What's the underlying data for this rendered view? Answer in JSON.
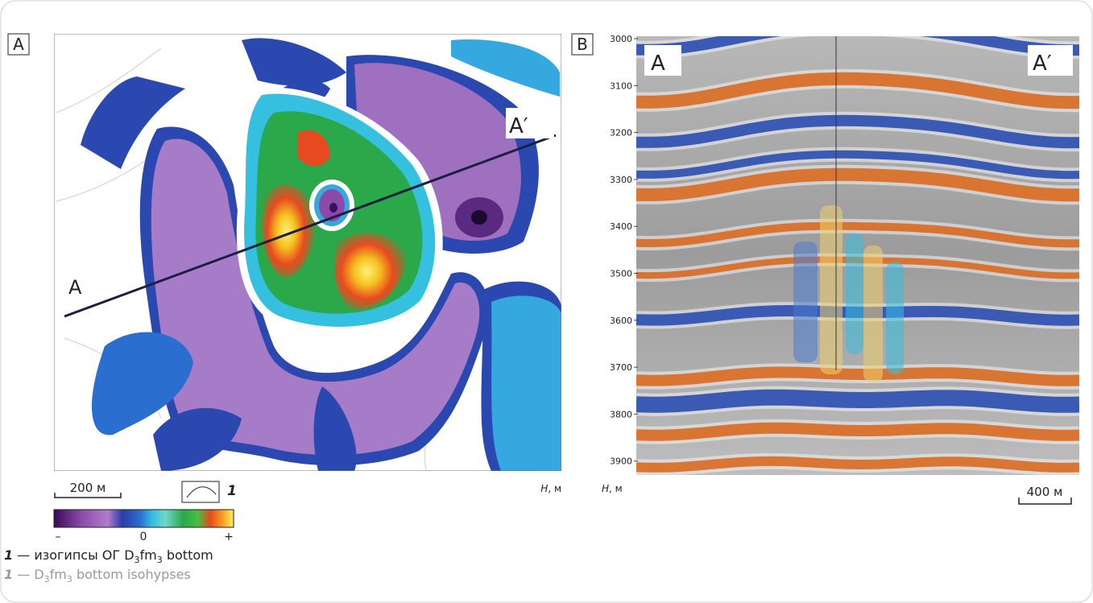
{
  "panel_a": {
    "label": "A",
    "section_start": "A",
    "section_end": "A′",
    "scale_bar": "200 м",
    "legend_symbol_number": "1",
    "depth_unit_var": "H",
    "depth_unit": ", м",
    "colorbar_min": "–",
    "colorbar_mid": "0",
    "colorbar_max": "+",
    "legend_ru": {
      "number": "1",
      "parts": [
        " — изогипсы ОГ D",
        "3",
        "fm",
        "3",
        " bottom"
      ]
    },
    "legend_en": {
      "number": "1",
      "parts": [
        " — D",
        "3",
        "fm",
        "3",
        " bottom isohypses"
      ]
    }
  },
  "panel_b": {
    "label": "B",
    "section_start": "A",
    "section_end": "A′",
    "depth_ticks": [
      3000,
      3100,
      3200,
      3300,
      3400,
      3500,
      3600,
      3700,
      3800,
      3900
    ],
    "depth_unit_var": "H",
    "depth_unit": ", м",
    "scale_bar": "400 м"
  }
}
